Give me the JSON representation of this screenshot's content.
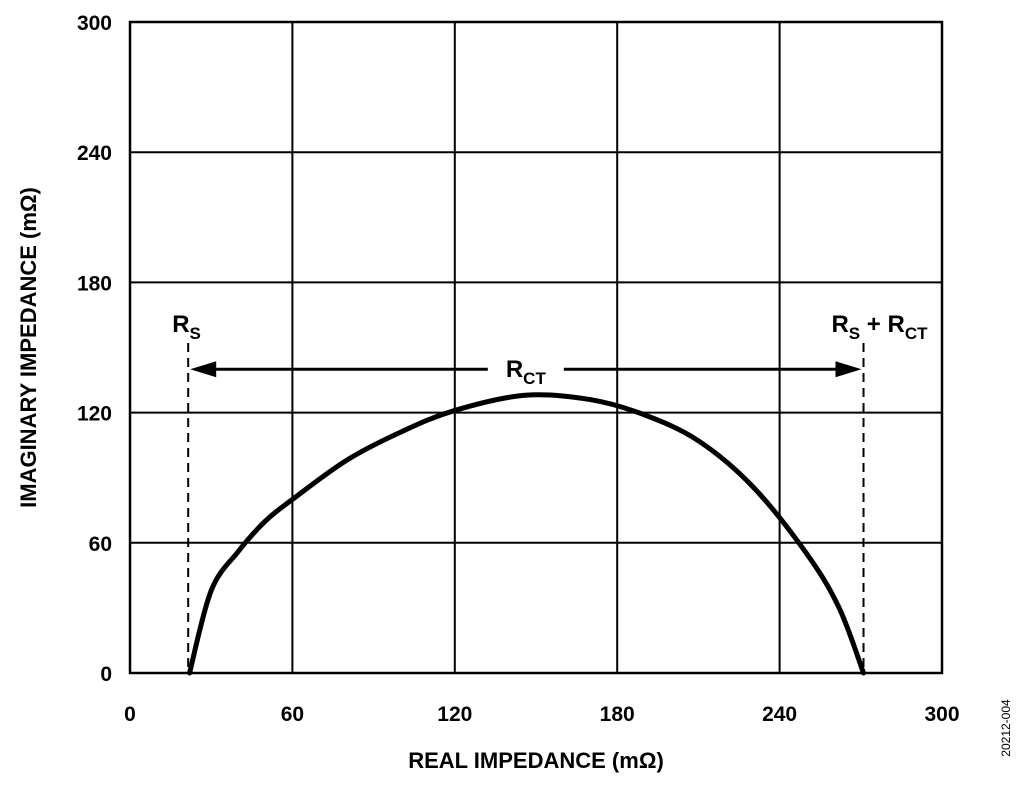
{
  "chart_data": {
    "type": "line",
    "xlabel": "REAL IMPEDANCE (mΩ)",
    "ylabel": "IMAGINARY IMPEDANCE (mΩ)",
    "xlim": [
      0,
      300
    ],
    "ylim": [
      0,
      300
    ],
    "x_ticks": [
      "0",
      "60",
      "120",
      "180",
      "240",
      "300"
    ],
    "y_ticks": [
      "0",
      "60",
      "120",
      "180",
      "240",
      "300"
    ],
    "grid": true,
    "series": [
      {
        "kind": "semicircle",
        "x": [
          22,
          30,
          40,
          50,
          60,
          80,
          100,
          120,
          146,
          170,
          190,
          210,
          230,
          250,
          262,
          271
        ],
        "y": [
          0,
          38,
          56,
          70,
          80,
          98,
          111,
          121,
          128,
          126,
          119,
          107,
          86,
          55,
          30,
          0
        ]
      }
    ],
    "annotations": {
      "rs": {
        "main": "R",
        "sub": "S",
        "x": 21.5
      },
      "rs_rct": {
        "main": "R",
        "sub": "S",
        "plus": " + R",
        "sub2": "CT",
        "x": 271
      },
      "rct": {
        "main": "R",
        "sub": "CT",
        "y": 140
      }
    },
    "figure_id": "20212-004"
  }
}
